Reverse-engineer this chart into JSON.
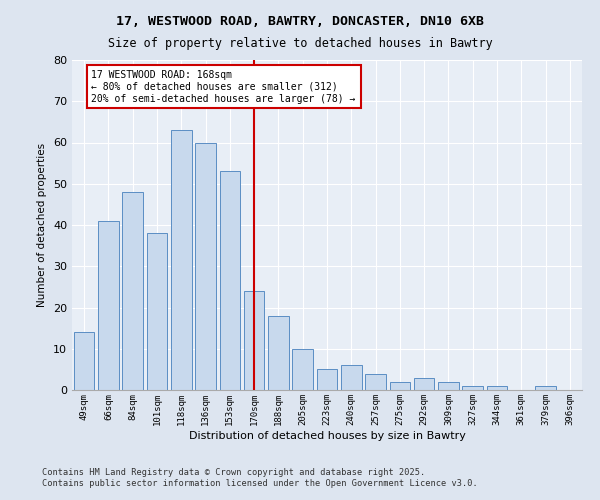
{
  "title1": "17, WESTWOOD ROAD, BAWTRY, DONCASTER, DN10 6XB",
  "title2": "Size of property relative to detached houses in Bawtry",
  "xlabel": "Distribution of detached houses by size in Bawtry",
  "ylabel": "Number of detached properties",
  "categories": [
    "49sqm",
    "66sqm",
    "84sqm",
    "101sqm",
    "118sqm",
    "136sqm",
    "153sqm",
    "170sqm",
    "188sqm",
    "205sqm",
    "223sqm",
    "240sqm",
    "257sqm",
    "275sqm",
    "292sqm",
    "309sqm",
    "327sqm",
    "344sqm",
    "361sqm",
    "379sqm",
    "396sqm"
  ],
  "values": [
    14,
    41,
    48,
    38,
    63,
    60,
    53,
    24,
    18,
    10,
    5,
    6,
    4,
    2,
    3,
    2,
    1,
    1,
    0,
    1,
    0
  ],
  "bar_color": "#c8d9ed",
  "bar_edge_color": "#5b8ec4",
  "vline_x_idx": 7,
  "vline_label": "17 WESTWOOD ROAD: 168sqm",
  "annotation_line1": "← 80% of detached houses are smaller (312)",
  "annotation_line2": "20% of semi-detached houses are larger (78) →",
  "annotation_box_color": "#ffffff",
  "annotation_box_edge": "#cc0000",
  "vline_color": "#cc0000",
  "ylim": [
    0,
    80
  ],
  "yticks": [
    0,
    10,
    20,
    30,
    40,
    50,
    60,
    70,
    80
  ],
  "footnote1": "Contains HM Land Registry data © Crown copyright and database right 2025.",
  "footnote2": "Contains public sector information licensed under the Open Government Licence v3.0.",
  "bg_color": "#dde5f0",
  "plot_bg_color": "#e8eef6"
}
